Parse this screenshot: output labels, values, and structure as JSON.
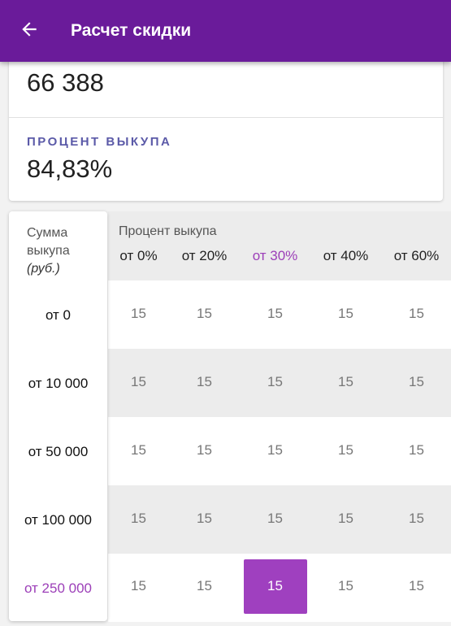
{
  "appbar": {
    "title": "Расчет скидки"
  },
  "stats": {
    "top_value": "66 388",
    "percent_label": "ПРОЦЕНТ ВЫКУПА",
    "percent_value": "84,83%"
  },
  "matrix": {
    "amount_header": {
      "line1": "Сумма",
      "line2": "выкупа",
      "unit": "(руб.)"
    },
    "percent_header": "Процент выкупа",
    "percent_columns": [
      "от 0%",
      "от 20%",
      "от 30%",
      "от 40%",
      "от 60%"
    ],
    "active_percent_column": 2,
    "amount_rows": [
      "от 0",
      "от 10 000",
      "от 50 000",
      "от 100 000",
      "от 250 000"
    ],
    "active_amount_row": 4,
    "values": [
      [
        "15",
        "15",
        "15",
        "15",
        "15"
      ],
      [
        "15",
        "15",
        "15",
        "15",
        "15"
      ],
      [
        "15",
        "15",
        "15",
        "15",
        "15"
      ],
      [
        "15",
        "15",
        "15",
        "15",
        "15"
      ],
      [
        "15",
        "15",
        "15",
        "15",
        "15"
      ]
    ]
  },
  "colors": {
    "appbar": "#6a1b9a",
    "accent": "#9f40bf",
    "label": "#5b5aa8"
  }
}
